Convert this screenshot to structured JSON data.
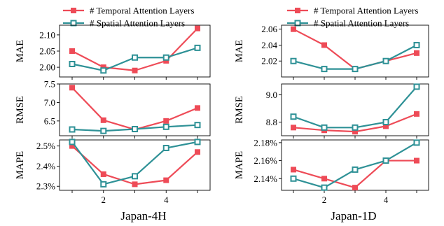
{
  "chart_data": [
    {
      "type": "line",
      "title": "Japan-4H",
      "legend": {
        "placement": "top"
      },
      "x": [
        1,
        2,
        3,
        4,
        5
      ],
      "xticks": [
        "2",
        "4"
      ],
      "colors": {
        "temporal": "#ee4b57",
        "spatial": "#2e9196"
      },
      "panels": [
        {
          "ylabel": "MAE",
          "ylim": [
            1.97,
            2.13
          ],
          "yticks": [
            "2.10",
            "2.05",
            "2.00"
          ],
          "series": [
            {
              "name": "# Temporal Attention Layers",
              "values": [
                2.05,
                2.0,
                1.99,
                2.02,
                2.12
              ]
            },
            {
              "name": "# Spatial Attention Layers",
              "values": [
                2.01,
                1.99,
                2.03,
                2.03,
                2.06
              ]
            }
          ]
        },
        {
          "ylabel": "RMSE",
          "ylim": [
            6.1,
            7.5
          ],
          "yticks": [
            "7.5",
            "7.0",
            "6.5"
          ],
          "series": [
            {
              "name": "# Temporal Attention Layers",
              "values": [
                7.4,
                6.52,
                6.27,
                6.5,
                6.85
              ]
            },
            {
              "name": "# Spatial Attention Layers",
              "values": [
                6.27,
                6.23,
                6.28,
                6.34,
                6.39
              ]
            }
          ]
        },
        {
          "ylabel": "MAPE",
          "ylim": [
            2.28,
            2.53
          ],
          "yticks": [
            "2.5%",
            "2.4%",
            "2.3%"
          ],
          "series": [
            {
              "name": "# Temporal Attention Layers",
              "values": [
                2.5,
                2.36,
                2.31,
                2.33,
                2.47
              ]
            },
            {
              "name": "# Spatial Attention Layers",
              "values": [
                2.52,
                2.31,
                2.35,
                2.49,
                2.52
              ]
            }
          ]
        }
      ]
    },
    {
      "type": "line",
      "title": "Japan-1D",
      "legend": {
        "placement": "top"
      },
      "x": [
        1,
        2,
        3,
        4,
        5
      ],
      "xticks": [
        "2",
        "4"
      ],
      "colors": {
        "temporal": "#ee4b57",
        "spatial": "#2e9196"
      },
      "panels": [
        {
          "ylabel": "MAE",
          "ylim": [
            2.0,
            2.065
          ],
          "yticks": [
            "2.06",
            "2.04",
            "2.02"
          ],
          "series": [
            {
              "name": "# Temporal Attention Layers",
              "values": [
                2.06,
                2.04,
                2.01,
                2.02,
                2.03
              ]
            },
            {
              "name": "# Spatial Attention Layers",
              "values": [
                2.02,
                2.01,
                2.01,
                2.02,
                2.04
              ]
            }
          ]
        },
        {
          "ylabel": "RMSE",
          "ylim": [
            8.7,
            9.08
          ],
          "yticks": [
            "9.0",
            "8.8"
          ],
          "series": [
            {
              "name": "# Temporal Attention Layers",
              "values": [
                8.76,
                8.74,
                8.73,
                8.77,
                8.86
              ]
            },
            {
              "name": "# Spatial Attention Layers",
              "values": [
                8.84,
                8.76,
                8.76,
                8.8,
                9.06
              ]
            }
          ]
        },
        {
          "ylabel": "MAPE",
          "ylim": [
            2.127,
            2.183
          ],
          "yticks": [
            "2.18%",
            "2.16%",
            "2.14%"
          ],
          "series": [
            {
              "name": "# Temporal Attention Layers",
              "values": [
                2.15,
                2.14,
                2.13,
                2.16,
                2.16
              ]
            },
            {
              "name": "# Spatial Attention Layers",
              "values": [
                2.14,
                2.13,
                2.15,
                2.16,
                2.18
              ]
            }
          ]
        }
      ]
    }
  ]
}
